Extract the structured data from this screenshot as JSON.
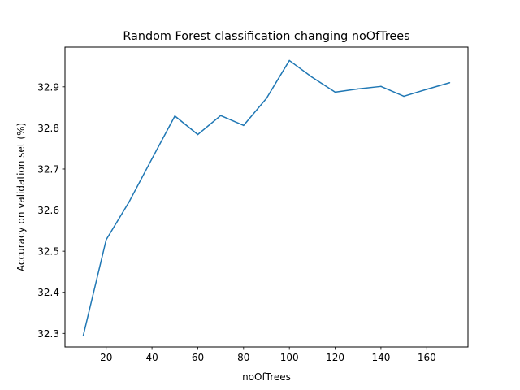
{
  "chart_data": {
    "type": "line",
    "title": "Random Forest classification changing noOfTrees",
    "xlabel": "noOfTrees",
    "ylabel": "Accuracy on validation set (%)",
    "xlim": [
      2,
      178
    ],
    "ylim": [
      32.267,
      32.9965
    ],
    "xticks": [
      20,
      40,
      60,
      80,
      100,
      120,
      140,
      160
    ],
    "yticks": [
      32.3,
      32.4,
      32.5,
      32.6,
      32.7,
      32.8,
      32.9
    ],
    "xtick_labels": [
      "20",
      "40",
      "60",
      "80",
      "100",
      "120",
      "140",
      "160"
    ],
    "ytick_labels": [
      "32.3",
      "32.4",
      "32.5",
      "32.6",
      "32.7",
      "32.8",
      "32.9"
    ],
    "grid": false,
    "legend": "none",
    "series": [
      {
        "color": "#1f77b4",
        "x": [
          10,
          20,
          30,
          40,
          50,
          60,
          70,
          80,
          90,
          100,
          110,
          120,
          130,
          140,
          150,
          160,
          170
        ],
        "y": [
          32.295,
          32.528,
          32.62,
          32.725,
          32.829,
          32.784,
          32.83,
          32.806,
          32.872,
          32.964,
          32.923,
          32.887,
          32.895,
          32.901,
          32.877,
          32.894,
          32.91
        ]
      }
    ]
  }
}
